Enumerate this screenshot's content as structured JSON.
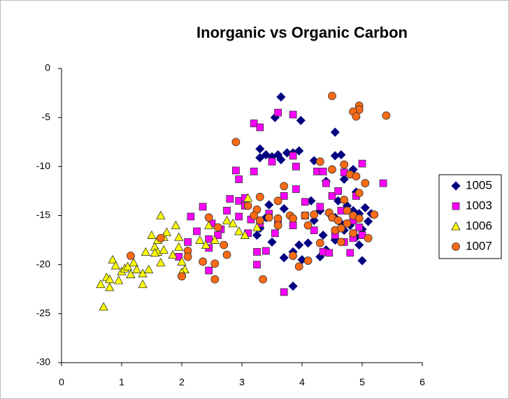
{
  "chart_data": {
    "type": "scatter",
    "title": "Inorganic vs Organic Carbon",
    "xlim": [
      0,
      6
    ],
    "xticks": [
      0,
      1,
      2,
      3,
      4,
      5,
      6
    ],
    "ylim": [
      -30,
      0
    ],
    "yticks": [
      0,
      -5,
      -10,
      -15,
      -20,
      -25,
      -30
    ],
    "grid": false,
    "legend": "right",
    "series": [
      {
        "name": "1005",
        "color": "#000080",
        "marker": "diamond",
        "x": [
          3.65,
          3.55,
          3.98,
          4.55,
          3.3,
          3.4,
          3.5,
          3.6,
          3.75,
          3.85,
          3.95,
          3.3,
          3.65,
          4.55,
          4.65,
          4.2,
          4.4,
          4.7,
          4.85,
          4.9,
          3.45,
          3.7,
          4.15,
          4.3,
          4.45,
          4.55,
          4.6,
          4.75,
          4.85,
          4.95,
          5.05,
          5.1,
          5.0,
          4.9,
          4.35,
          4.1,
          3.95,
          3.85,
          3.7,
          4.3,
          4.4,
          4.55,
          4.7,
          4.95,
          5.0,
          3.85,
          3.4,
          3.3,
          3.25,
          4.2,
          4.8,
          5.15,
          4.0,
          4.65,
          3.5
        ],
        "values": [
          -2.9,
          -5,
          -5.3,
          -6.5,
          -8.2,
          -8.8,
          -9,
          -8.8,
          -8.6,
          -8.6,
          -8.4,
          -9.1,
          -9.3,
          -8.9,
          -8.8,
          -9.4,
          -11.5,
          -11.3,
          -10.3,
          -12.6,
          -13.9,
          -14.3,
          -13.5,
          -14.5,
          -14.8,
          -15.2,
          -13.5,
          -14,
          -14.5,
          -14.8,
          -14.2,
          -15.6,
          -16.4,
          -17.2,
          -17,
          -17.8,
          -18,
          -18.7,
          -19.3,
          -19.2,
          -18.5,
          -17.5,
          -16.5,
          -18,
          -19.6,
          -22.2,
          -15.2,
          -16.3,
          -17,
          -15.5,
          -16,
          -14.8,
          -19.5,
          -15.8,
          -17.7
        ]
      },
      {
        "name": "1003",
        "color": "#ff00ff",
        "marker": "square",
        "x": [
          3.6,
          3.85,
          3.2,
          3.3,
          3.5,
          3.85,
          3.9,
          2.9,
          2.95,
          3.2,
          3.9,
          3.7,
          4.05,
          4.25,
          4.35,
          4.4,
          4.5,
          4.6,
          4.7,
          5.0,
          5.35,
          4.9,
          2.35,
          2.8,
          2.95,
          3.05,
          3.05,
          2.75,
          2.95,
          2.15,
          2.5,
          2.65,
          2.45,
          2.25,
          2.1,
          1.95,
          2.45,
          2.45,
          2.6,
          3.3,
          3.45,
          3.15,
          3.1,
          3.25,
          3.4,
          3.25,
          3.55,
          3.7,
          3.85,
          4.05,
          4.2,
          4.35,
          4.45,
          4.55,
          4.7,
          4.8,
          4.85,
          4.95,
          4.3,
          4.65,
          4.85,
          5.0,
          3.6
        ],
        "values": [
          -4.5,
          -4.7,
          -5.6,
          -6,
          -9.5,
          -8.9,
          -10,
          -10.4,
          -11.3,
          -10.5,
          -12.3,
          -13,
          -13.6,
          -10.5,
          -10.5,
          -11.7,
          -13,
          -12.5,
          -10.6,
          -9.7,
          -11.7,
          -13,
          -14.1,
          -13.3,
          -13.5,
          -13.2,
          -14,
          -14.5,
          -15.1,
          -15.1,
          -15.8,
          -16.4,
          -17.4,
          -16.6,
          -17.7,
          -19.2,
          -18.3,
          -20.6,
          -17,
          -15.8,
          -14.8,
          -15.4,
          -16.8,
          -18.7,
          -18.6,
          -20,
          -16.8,
          -22.8,
          -16,
          -15,
          -16.5,
          -18.7,
          -18.8,
          -17,
          -17.7,
          -18.8,
          -17.3,
          -16.2,
          -14.1,
          -14.5,
          -15.5,
          -17,
          -15.5
        ]
      },
      {
        "name": "1006",
        "color": "#ffff00",
        "marker": "triangle",
        "x": [
          0.7,
          0.65,
          0.75,
          0.8,
          0.8,
          0.85,
          0.9,
          0.95,
          1.0,
          1.05,
          1.1,
          1.15,
          1.2,
          1.25,
          1.35,
          1.35,
          1.4,
          1.45,
          1.5,
          1.55,
          1.6,
          1.6,
          1.65,
          1.65,
          1.7,
          1.7,
          1.75,
          1.85,
          1.9,
          1.95,
          1.95,
          2.0,
          2.05,
          2.0,
          2.3,
          2.4,
          2.45,
          2.55,
          2.75,
          2.85,
          2.95,
          3.1,
          3.25,
          3.05,
          1.55
        ],
        "values": [
          -24.3,
          -22,
          -21.3,
          -22.3,
          -21.5,
          -19.5,
          -20.1,
          -21.6,
          -20.7,
          -20.4,
          -20.2,
          -21,
          -19.8,
          -20.5,
          -20.9,
          -22,
          -18.7,
          -20.5,
          -17,
          -18.2,
          -18.7,
          -17.5,
          -19.8,
          -15,
          -17.2,
          -18.5,
          -16.7,
          -19,
          -16,
          -17.2,
          -18.2,
          -19.7,
          -20.5,
          -20.8,
          -17.5,
          -18,
          -16,
          -17.5,
          -15.5,
          -15.8,
          -16.6,
          -13.2,
          -16.2,
          -17,
          -18.8
        ]
      },
      {
        "name": "1007",
        "color": "#ff6a13",
        "marker": "circle",
        "x": [
          4.5,
          4.95,
          4.95,
          4.85,
          4.9,
          5.4,
          2.9,
          4.5,
          4.3,
          4.7,
          4.8,
          4.9,
          5.05,
          4.95,
          3.7,
          3.6,
          3.3,
          3.1,
          3.25,
          3.2,
          3.45,
          3.6,
          3.6,
          3.8,
          3.85,
          4.05,
          4.2,
          4.45,
          4.5,
          4.6,
          4.75,
          4.85,
          4.95,
          5.2,
          4.7,
          2.45,
          2.6,
          2.7,
          2.75,
          2.55,
          2.55,
          2.35,
          2.1,
          2.1,
          2.0,
          1.65,
          1.15,
          3.35,
          3.85,
          3.95,
          4.1,
          4.3,
          4.55,
          4.65,
          4.85,
          5.1,
          4.65,
          4.1,
          3.3,
          4.75
        ],
        "values": [
          -2.8,
          -3.8,
          -4.2,
          -4.4,
          -4.9,
          -4.8,
          -7.5,
          -10.3,
          -9.5,
          -9.8,
          -10.8,
          -11,
          -11.7,
          -12.7,
          -12,
          -13.5,
          -13.1,
          -14,
          -14.4,
          -15,
          -15.2,
          -15.3,
          -16,
          -15,
          -15.3,
          -15,
          -14.9,
          -14.7,
          -15.2,
          -15.5,
          -14.5,
          -15,
          -15.3,
          -14.9,
          -13.4,
          -15.2,
          -16.2,
          -18,
          -19,
          -19.9,
          -21.5,
          -19.7,
          -18.6,
          -19.2,
          -21.2,
          -17.3,
          -19.1,
          -21.5,
          -19.1,
          -20.2,
          -19.6,
          -17.8,
          -16.5,
          -16.3,
          -16.8,
          -17.3,
          -17.7,
          -16,
          -15.5,
          -15.8
        ]
      }
    ]
  }
}
